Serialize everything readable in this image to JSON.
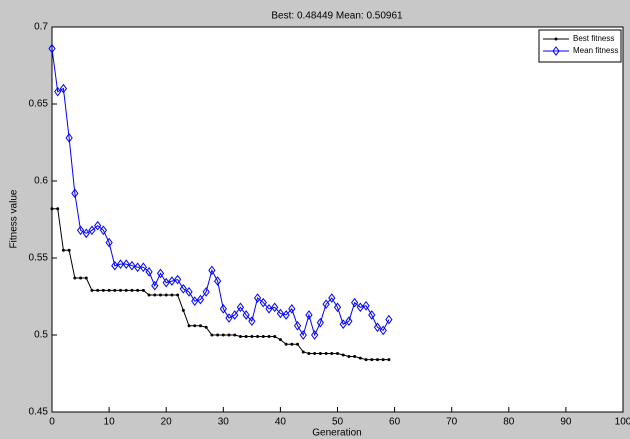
{
  "chart_data": {
    "type": "line",
    "title": "Best: 0.48449 Mean: 0.50961",
    "x_label": "Generation",
    "y_label": "Fitness value",
    "x": [
      0,
      1,
      2,
      3,
      4,
      5,
      6,
      7,
      8,
      9,
      10,
      11,
      12,
      13,
      14,
      15,
      16,
      17,
      18,
      19,
      20,
      21,
      22,
      23,
      24,
      25,
      26,
      27,
      28,
      29,
      30,
      31,
      32,
      33,
      34,
      35,
      36,
      37,
      38,
      39,
      40,
      41,
      42,
      43,
      44,
      45,
      46,
      47,
      48,
      49,
      50,
      51,
      52,
      53,
      54,
      55,
      56,
      57,
      58,
      59
    ],
    "series": [
      {
        "name": "Best fitness",
        "color": "#000000",
        "marker": "dot",
        "values": [
          0.582,
          0.582,
          0.555,
          0.555,
          0.537,
          0.537,
          0.537,
          0.529,
          0.529,
          0.529,
          0.529,
          0.529,
          0.529,
          0.529,
          0.529,
          0.529,
          0.529,
          0.526,
          0.526,
          0.526,
          0.526,
          0.526,
          0.526,
          0.516,
          0.506,
          0.506,
          0.506,
          0.505,
          0.5,
          0.5,
          0.5,
          0.5,
          0.5,
          0.499,
          0.499,
          0.499,
          0.499,
          0.499,
          0.499,
          0.499,
          0.497,
          0.494,
          0.494,
          0.494,
          0.489,
          0.488,
          0.488,
          0.488,
          0.488,
          0.488,
          0.488,
          0.487,
          0.486,
          0.486,
          0.485,
          0.484,
          0.484,
          0.484,
          0.484,
          0.484
        ]
      },
      {
        "name": "Mean fitness",
        "color": "#0000ff",
        "marker": "diamond",
        "values": [
          0.686,
          0.658,
          0.66,
          0.628,
          0.592,
          0.568,
          0.566,
          0.568,
          0.571,
          0.568,
          0.56,
          0.545,
          0.546,
          0.546,
          0.545,
          0.544,
          0.544,
          0.541,
          0.532,
          0.54,
          0.534,
          0.535,
          0.536,
          0.53,
          0.528,
          0.522,
          0.523,
          0.528,
          0.542,
          0.535,
          0.517,
          0.511,
          0.513,
          0.518,
          0.513,
          0.509,
          0.524,
          0.521,
          0.517,
          0.518,
          0.514,
          0.513,
          0.517,
          0.506,
          0.5,
          0.513,
          0.5,
          0.508,
          0.52,
          0.524,
          0.518,
          0.507,
          0.509,
          0.521,
          0.518,
          0.519,
          0.513,
          0.505,
          0.503,
          0.51
        ]
      }
    ],
    "xlim": [
      0,
      100
    ],
    "xticks": [
      0,
      10,
      20,
      30,
      40,
      50,
      60,
      70,
      80,
      90,
      100
    ],
    "ylim": [
      0.45,
      0.7
    ],
    "yticks": [
      0.45,
      0.5,
      0.55,
      0.6,
      0.65,
      0.7
    ],
    "grid": false,
    "legend": "top-right"
  }
}
